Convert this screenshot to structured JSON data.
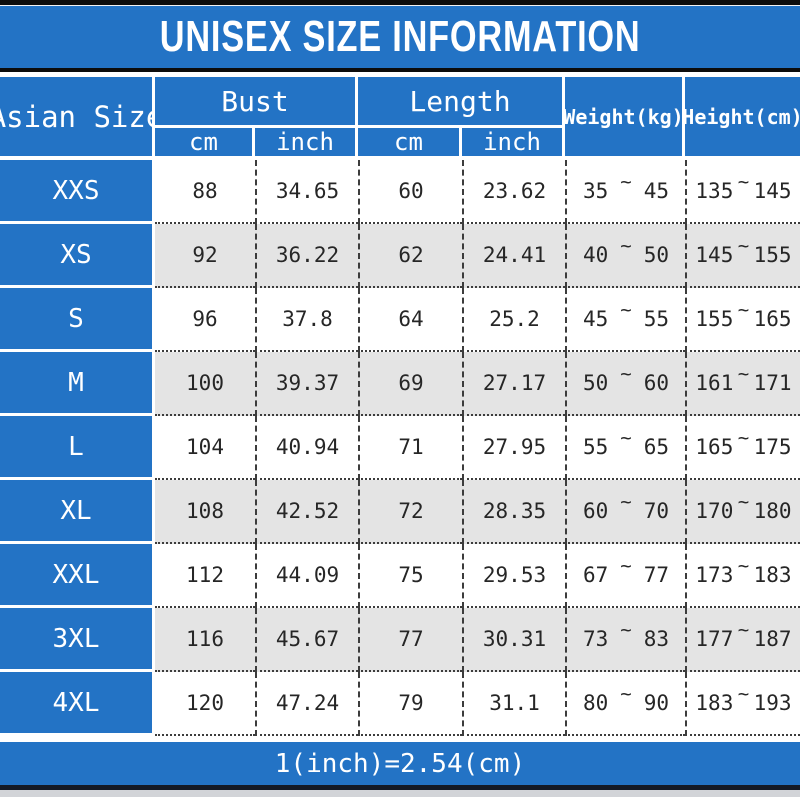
{
  "title": "UNISEX SIZE INFORMATION",
  "table": {
    "size_header": "Asian Size",
    "groups": [
      {
        "label": "Bust",
        "sub": [
          "cm",
          "inch"
        ]
      },
      {
        "label": "Length",
        "sub": [
          "cm",
          "inch"
        ]
      }
    ],
    "weight_header": "Weight(kg)",
    "height_header": "Height(cm)",
    "tilde": "~",
    "rows": [
      {
        "size": "XXS",
        "bust_cm": "88",
        "bust_inch": "34.65",
        "length_cm": "60",
        "length_inch": "23.62",
        "weight_min": "35",
        "weight_max": "45",
        "height_min": "135",
        "height_max": "145"
      },
      {
        "size": "XS",
        "bust_cm": "92",
        "bust_inch": "36.22",
        "length_cm": "62",
        "length_inch": "24.41",
        "weight_min": "40",
        "weight_max": "50",
        "height_min": "145",
        "height_max": "155"
      },
      {
        "size": "S",
        "bust_cm": "96",
        "bust_inch": "37.8",
        "length_cm": "64",
        "length_inch": "25.2",
        "weight_min": "45",
        "weight_max": "55",
        "height_min": "155",
        "height_max": "165"
      },
      {
        "size": "M",
        "bust_cm": "100",
        "bust_inch": "39.37",
        "length_cm": "69",
        "length_inch": "27.17",
        "weight_min": "50",
        "weight_max": "60",
        "height_min": "161",
        "height_max": "171"
      },
      {
        "size": "L",
        "bust_cm": "104",
        "bust_inch": "40.94",
        "length_cm": "71",
        "length_inch": "27.95",
        "weight_min": "55",
        "weight_max": "65",
        "height_min": "165",
        "height_max": "175"
      },
      {
        "size": "XL",
        "bust_cm": "108",
        "bust_inch": "42.52",
        "length_cm": "72",
        "length_inch": "28.35",
        "weight_min": "60",
        "weight_max": "70",
        "height_min": "170",
        "height_max": "180"
      },
      {
        "size": "XXL",
        "bust_cm": "112",
        "bust_inch": "44.09",
        "length_cm": "75",
        "length_inch": "29.53",
        "weight_min": "67",
        "weight_max": "77",
        "height_min": "173",
        "height_max": "183"
      },
      {
        "size": "3XL",
        "bust_cm": "116",
        "bust_inch": "45.67",
        "length_cm": "77",
        "length_inch": "30.31",
        "weight_min": "73",
        "weight_max": "83",
        "height_min": "177",
        "height_max": "187"
      },
      {
        "size": "4XL",
        "bust_cm": "120",
        "bust_inch": "47.24",
        "length_cm": "79",
        "length_inch": "31.1",
        "weight_min": "80",
        "weight_max": "90",
        "height_min": "183",
        "height_max": "193"
      }
    ]
  },
  "footer": {
    "note": "1(inch)=2.54(cm)"
  },
  "colors": {
    "accent_blue": "#2373c5",
    "row_alt_gray": "#e4e4e4",
    "bar_black": "#0c0c0c",
    "footer_line_navy": "#141a26"
  }
}
